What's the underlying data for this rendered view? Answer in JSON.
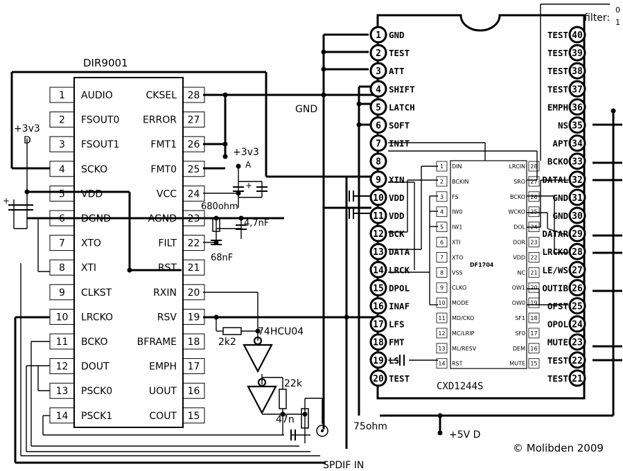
{
  "dir9001": {
    "title": "DIR9001",
    "left_pins": [
      {
        "n": "1",
        "name": "AUDIO"
      },
      {
        "n": "2",
        "name": "FSOUT0"
      },
      {
        "n": "3",
        "name": "FSOUT1"
      },
      {
        "n": "4",
        "name": "SCKO"
      },
      {
        "n": "5",
        "name": "VDD"
      },
      {
        "n": "6",
        "name": "DGND"
      },
      {
        "n": "7",
        "name": "XTO"
      },
      {
        "n": "8",
        "name": "XTI"
      },
      {
        "n": "9",
        "name": "CLKST"
      },
      {
        "n": "10",
        "name": "LRCKO"
      },
      {
        "n": "11",
        "name": "BCKO"
      },
      {
        "n": "12",
        "name": "DOUT"
      },
      {
        "n": "13",
        "name": "PSCK0"
      },
      {
        "n": "14",
        "name": "PSCK1"
      }
    ],
    "right_pins": [
      {
        "n": "28",
        "name": "CKSEL"
      },
      {
        "n": "27",
        "name": "ERROR"
      },
      {
        "n": "26",
        "name": "FMT1"
      },
      {
        "n": "25",
        "name": "FMT0"
      },
      {
        "n": "24",
        "name": "VCC"
      },
      {
        "n": "23",
        "name": "AGND"
      },
      {
        "n": "22",
        "name": "FILT"
      },
      {
        "n": "21",
        "name": "RST"
      },
      {
        "n": "20",
        "name": "RXIN"
      },
      {
        "n": "19",
        "name": "RSV"
      },
      {
        "n": "18",
        "name": "BFRAME"
      },
      {
        "n": "17",
        "name": "EMPH"
      },
      {
        "n": "16",
        "name": "UOUT"
      },
      {
        "n": "15",
        "name": "COUT"
      }
    ]
  },
  "cxd": {
    "title": "CXD1244S",
    "left_pins": [
      {
        "n": "1",
        "name": "GND"
      },
      {
        "n": "2",
        "name": "TEST"
      },
      {
        "n": "3",
        "name": "ATT"
      },
      {
        "n": "4",
        "name": "SHIFT"
      },
      {
        "n": "5",
        "name": "LATCH"
      },
      {
        "n": "6",
        "name": "SOFT"
      },
      {
        "n": "7",
        "name": "INIT"
      },
      {
        "n": "8",
        "name": ""
      },
      {
        "n": "9",
        "name": "XIN"
      },
      {
        "n": "10",
        "name": "VDD"
      },
      {
        "n": "11",
        "name": "VDD"
      },
      {
        "n": "12",
        "name": "BCK"
      },
      {
        "n": "13",
        "name": "DATA"
      },
      {
        "n": "14",
        "name": "LRCK"
      },
      {
        "n": "15",
        "name": "DPOL"
      },
      {
        "n": "16",
        "name": "INAF"
      },
      {
        "n": "17",
        "name": "LFS"
      },
      {
        "n": "18",
        "name": "FMT"
      },
      {
        "n": "19",
        "name": "LS"
      },
      {
        "n": "20",
        "name": "TEST"
      }
    ],
    "right_pins": [
      {
        "n": "40",
        "name": "TEST"
      },
      {
        "n": "39",
        "name": "TEST"
      },
      {
        "n": "38",
        "name": "TEST"
      },
      {
        "n": "37",
        "name": "TEST"
      },
      {
        "n": "36",
        "name": "EMPH"
      },
      {
        "n": "35",
        "name": "NS"
      },
      {
        "n": "34",
        "name": "APT"
      },
      {
        "n": "33",
        "name": "BCKO"
      },
      {
        "n": "32",
        "name": "DATAL"
      },
      {
        "n": "31",
        "name": "GND"
      },
      {
        "n": "30",
        "name": "GND"
      },
      {
        "n": "29",
        "name": "DATAR"
      },
      {
        "n": "28",
        "name": "LRCKO"
      },
      {
        "n": "27",
        "name": "LE/WS"
      },
      {
        "n": "26",
        "name": "OUTIB"
      },
      {
        "n": "25",
        "name": "OFST"
      },
      {
        "n": "24",
        "name": "OPOL"
      },
      {
        "n": "23",
        "name": "MUTE"
      },
      {
        "n": "22",
        "name": "TEST"
      },
      {
        "n": "21",
        "name": "TEST"
      }
    ]
  },
  "df": {
    "title": "DF1704",
    "left_pins": [
      {
        "n": "1",
        "name": "DIN"
      },
      {
        "n": "2",
        "name": "BCKIN"
      },
      {
        "n": "3",
        "name": "FS"
      },
      {
        "n": "4",
        "name": "IW0"
      },
      {
        "n": "5",
        "name": "IW1"
      },
      {
        "n": "6",
        "name": "XTI"
      },
      {
        "n": "7",
        "name": "XTO"
      },
      {
        "n": "8",
        "name": "VSS"
      },
      {
        "n": "9",
        "name": "CLKO"
      },
      {
        "n": "10",
        "name": "MODE"
      },
      {
        "n": "11",
        "name": "MD/CKO"
      },
      {
        "n": "12",
        "name": "MC/LRIP"
      },
      {
        "n": "13",
        "name": "ML/RESV"
      },
      {
        "n": "14",
        "name": "RST"
      }
    ],
    "right_pins": [
      {
        "n": "28",
        "name": "LRCIN"
      },
      {
        "n": "27",
        "name": "SRO"
      },
      {
        "n": "26",
        "name": "BCKO"
      },
      {
        "n": "25",
        "name": "WCKO"
      },
      {
        "n": "24",
        "name": "DOL"
      },
      {
        "n": "23",
        "name": "DOR"
      },
      {
        "n": "22",
        "name": "VDD"
      },
      {
        "n": "21",
        "name": "NC"
      },
      {
        "n": "20",
        "name": "OW1"
      },
      {
        "n": "19",
        "name": "OW0"
      },
      {
        "n": "18",
        "name": "SF1"
      },
      {
        "n": "17",
        "name": "SF0"
      },
      {
        "n": "16",
        "name": "DEM"
      },
      {
        "n": "15",
        "name": "MUTE"
      }
    ]
  },
  "labels": {
    "gnd": "GND",
    "v33_d_1": "+3v3",
    "v33_d_2": "D",
    "v33_a_1": "+3v3",
    "v33_a_2": "A",
    "r680": "680ohm",
    "c47n": "4,7nF",
    "c68n": "68nF",
    "r2k2": "2k2",
    "inverter": "74HCU04",
    "r22k": "22k",
    "c47": "47n",
    "r75": "75ohm",
    "spdif": "SPDIF IN",
    "v5": "+5V D",
    "filter": "filter:",
    "filter0": "0",
    "filter1": "1",
    "copyright": "© Molibden 2009",
    "plus": "+"
  }
}
